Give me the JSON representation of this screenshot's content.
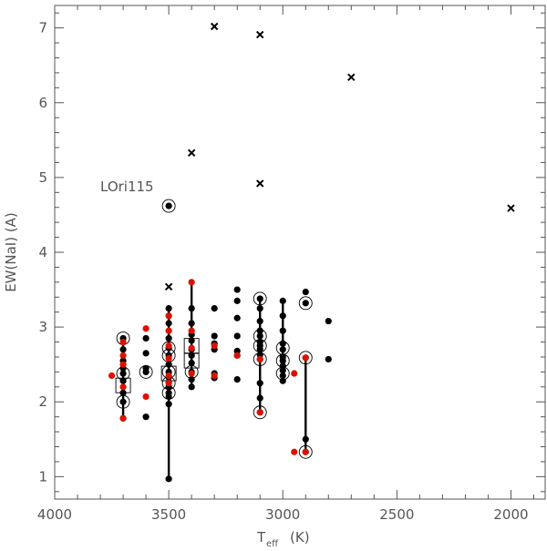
{
  "chart_data": {
    "type": "scatter",
    "xlabel": "T",
    "xlabel_sub": "eff",
    "xlabel_unit": "(K)",
    "ylabel": "EW(NaI) (A)",
    "xlim": [
      4000,
      1850
    ],
    "ylim": [
      0.7,
      7.3
    ],
    "x_reversed": true,
    "grid": false,
    "x_ticks": [
      4000,
      3500,
      3000,
      2500,
      2000
    ],
    "x_tick_labels": [
      "4000",
      "3500",
      "3000",
      "2500",
      "2000"
    ],
    "y_ticks": [
      1,
      2,
      3,
      4,
      5,
      6,
      7
    ],
    "y_tick_labels": [
      "1",
      "2",
      "3",
      "4",
      "5",
      "6",
      "7"
    ],
    "annotation": {
      "text": "LOri115",
      "x": 3500,
      "y": 4.62
    },
    "colors": {
      "black": "#000000",
      "red": "#dd1100",
      "axis": "#555555"
    },
    "segments": [
      {
        "x": 3700,
        "y1": 1.78,
        "y2": 2.85
      },
      {
        "x": 3500,
        "y1": 0.97,
        "y2": 3.25
      },
      {
        "x": 3400,
        "y1": 2.2,
        "y2": 3.6
      },
      {
        "x": 3100,
        "y1": 1.86,
        "y2": 3.4
      },
      {
        "x": 3000,
        "y1": 2.28,
        "y2": 3.35
      },
      {
        "x": 2900,
        "y1": 1.33,
        "y2": 2.59
      }
    ],
    "series": [
      {
        "marker": "black-dot",
        "points": [
          [
            3700,
            1.78
          ],
          [
            3700,
            2.0
          ],
          [
            3700,
            2.12
          ],
          [
            3700,
            2.28
          ],
          [
            3700,
            2.38
          ],
          [
            3700,
            2.45
          ],
          [
            3700,
            2.55
          ],
          [
            3700,
            2.7
          ],
          [
            3700,
            2.85
          ],
          [
            3600,
            1.8
          ],
          [
            3600,
            2.4
          ],
          [
            3600,
            2.45
          ],
          [
            3600,
            2.65
          ],
          [
            3600,
            2.85
          ],
          [
            3500,
            0.97
          ],
          [
            3500,
            1.97
          ],
          [
            3500,
            2.07
          ],
          [
            3500,
            2.12
          ],
          [
            3500,
            2.2
          ],
          [
            3500,
            2.26
          ],
          [
            3500,
            2.33
          ],
          [
            3500,
            2.4
          ],
          [
            3500,
            2.5
          ],
          [
            3500,
            2.62
          ],
          [
            3500,
            2.72
          ],
          [
            3500,
            2.85
          ],
          [
            3500,
            3.05
          ],
          [
            3500,
            3.15
          ],
          [
            3500,
            3.25
          ],
          [
            3500,
            4.62
          ],
          [
            3400,
            2.2
          ],
          [
            3400,
            2.3
          ],
          [
            3400,
            2.4
          ],
          [
            3400,
            2.52
          ],
          [
            3400,
            2.62
          ],
          [
            3400,
            2.7
          ],
          [
            3400,
            2.82
          ],
          [
            3400,
            2.9
          ],
          [
            3400,
            3.05
          ],
          [
            3400,
            3.25
          ],
          [
            3300,
            2.32
          ],
          [
            3300,
            2.38
          ],
          [
            3300,
            2.7
          ],
          [
            3300,
            2.78
          ],
          [
            3300,
            2.88
          ],
          [
            3300,
            3.25
          ],
          [
            3200,
            2.3
          ],
          [
            3200,
            2.62
          ],
          [
            3200,
            2.68
          ],
          [
            3200,
            2.88
          ],
          [
            3200,
            3.12
          ],
          [
            3200,
            3.35
          ],
          [
            3200,
            3.5
          ],
          [
            3100,
            1.86
          ],
          [
            3100,
            2.05
          ],
          [
            3100,
            2.25
          ],
          [
            3100,
            2.57
          ],
          [
            3100,
            2.63
          ],
          [
            3100,
            2.7
          ],
          [
            3100,
            2.75
          ],
          [
            3100,
            2.8
          ],
          [
            3100,
            2.88
          ],
          [
            3100,
            2.95
          ],
          [
            3100,
            3.08
          ],
          [
            3100,
            3.25
          ],
          [
            3100,
            3.38
          ],
          [
            3000,
            2.28
          ],
          [
            3000,
            2.35
          ],
          [
            3000,
            2.42
          ],
          [
            3000,
            2.48
          ],
          [
            3000,
            2.55
          ],
          [
            3000,
            2.6
          ],
          [
            3000,
            2.7
          ],
          [
            3000,
            2.78
          ],
          [
            3000,
            2.95
          ],
          [
            3000,
            3.15
          ],
          [
            3000,
            3.35
          ],
          [
            2900,
            1.33
          ],
          [
            2900,
            1.5
          ],
          [
            2900,
            2.59
          ],
          [
            2900,
            3.32
          ],
          [
            2900,
            3.47
          ],
          [
            2800,
            2.57
          ],
          [
            2800,
            3.08
          ]
        ]
      },
      {
        "marker": "red-dot",
        "points": [
          [
            3750,
            2.35
          ],
          [
            3700,
            1.78
          ],
          [
            3700,
            2.2
          ],
          [
            3700,
            2.5
          ],
          [
            3700,
            2.62
          ],
          [
            3700,
            2.8
          ],
          [
            3600,
            2.07
          ],
          [
            3600,
            2.98
          ],
          [
            3500,
            2.25
          ],
          [
            3500,
            2.35
          ],
          [
            3500,
            2.58
          ],
          [
            3500,
            2.75
          ],
          [
            3500,
            2.95
          ],
          [
            3500,
            3.15
          ],
          [
            3400,
            2.38
          ],
          [
            3400,
            2.72
          ],
          [
            3400,
            2.95
          ],
          [
            3400,
            3.6
          ],
          [
            3300,
            2.35
          ],
          [
            3300,
            2.75
          ],
          [
            3200,
            2.62
          ],
          [
            3100,
            1.86
          ],
          [
            3100,
            2.57
          ],
          [
            2950,
            1.33
          ],
          [
            2950,
            2.38
          ],
          [
            2900,
            1.33
          ],
          [
            2900,
            2.59
          ]
        ]
      },
      {
        "marker": "circled",
        "points": [
          [
            3700,
            2.0
          ],
          [
            3700,
            2.38
          ],
          [
            3700,
            2.85
          ],
          [
            3600,
            2.4
          ],
          [
            3500,
            2.12
          ],
          [
            3500,
            2.25
          ],
          [
            3500,
            2.4
          ],
          [
            3500,
            2.62
          ],
          [
            3500,
            2.72
          ],
          [
            3500,
            4.62
          ],
          [
            3400,
            2.4
          ],
          [
            3100,
            1.86
          ],
          [
            3100,
            2.57
          ],
          [
            3100,
            2.75
          ],
          [
            3100,
            2.88
          ],
          [
            3100,
            3.38
          ],
          [
            3000,
            2.38
          ],
          [
            3000,
            2.55
          ],
          [
            3000,
            2.72
          ],
          [
            2900,
            1.33
          ],
          [
            2900,
            2.59
          ],
          [
            2900,
            3.32
          ]
        ]
      },
      {
        "marker": "square",
        "points": [
          [
            3700,
            2.22
          ],
          [
            3500,
            2.38
          ],
          [
            3400,
            2.75
          ],
          [
            3400,
            2.55
          ]
        ]
      },
      {
        "marker": "cross",
        "points": [
          [
            3500,
            3.54
          ],
          [
            3400,
            5.33
          ],
          [
            3300,
            7.02
          ],
          [
            3100,
            6.91
          ],
          [
            3100,
            4.92
          ],
          [
            2700,
            6.34
          ],
          [
            2000,
            4.59
          ]
        ]
      }
    ]
  }
}
